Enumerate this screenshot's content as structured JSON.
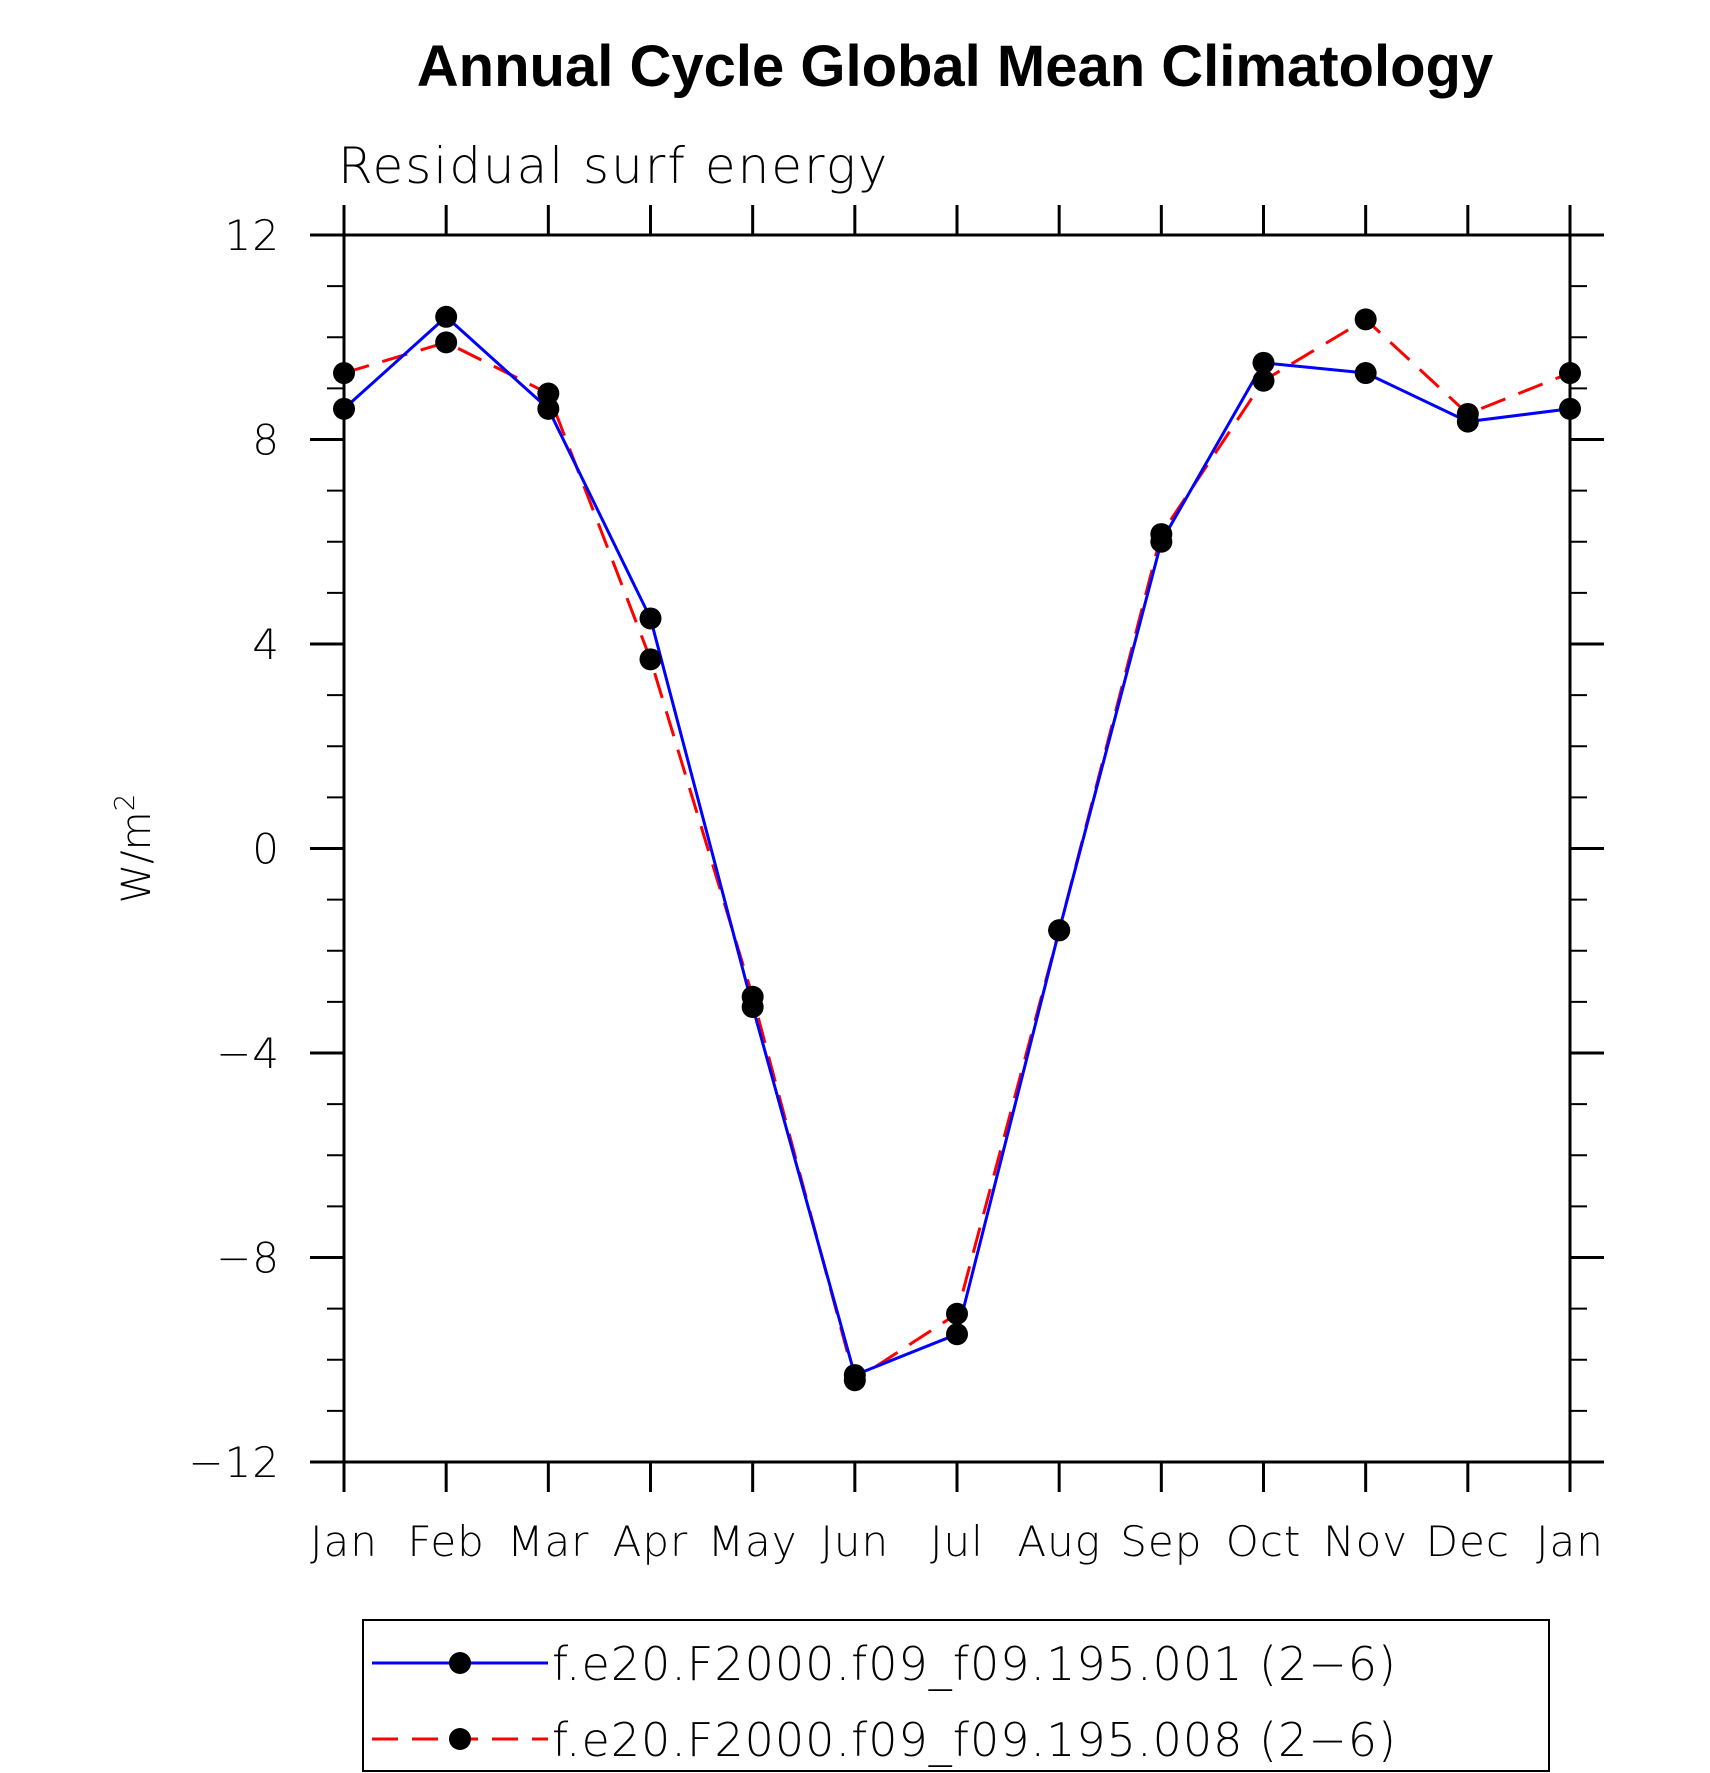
{
  "chart_data": {
    "type": "line",
    "title": "Annual Cycle Global Mean Climatology",
    "subtitle": "Residual surf energy",
    "ylabel": "W/m",
    "ylabel_superscript": "2",
    "xlabel": "",
    "categories": [
      "Jan",
      "Feb",
      "Mar",
      "Apr",
      "May",
      "Jun",
      "Jul",
      "Aug",
      "Sep",
      "Oct",
      "Nov",
      "Dec",
      "Jan"
    ],
    "ylim": [
      -12,
      12
    ],
    "yticks": [
      -12,
      -8,
      -4,
      0,
      4,
      8,
      12
    ],
    "ytick_labels": [
      "−12",
      "−8",
      "−4",
      "0",
      "4",
      "8",
      "12"
    ],
    "grid": false,
    "legend_position": "bottom",
    "series": [
      {
        "name": "f.e20.F2000.f09_f09.195.001 (2−6)",
        "color": "#0000ff",
        "dash": "solid",
        "marker": "filled-circle",
        "values": [
          8.6,
          10.4,
          8.6,
          4.5,
          -3.1,
          -10.3,
          -9.5,
          -1.6,
          6.0,
          9.5,
          9.3,
          8.35,
          8.6
        ]
      },
      {
        "name": "f.e20.F2000.f09_f09.195.008 (2−6)",
        "color": "#ff0000",
        "dash": "dashed",
        "marker": "filled-circle",
        "values": [
          9.3,
          9.9,
          8.9,
          3.7,
          -2.9,
          -10.4,
          -9.1,
          -1.6,
          6.15,
          9.15,
          10.35,
          8.5,
          9.3
        ]
      }
    ]
  }
}
